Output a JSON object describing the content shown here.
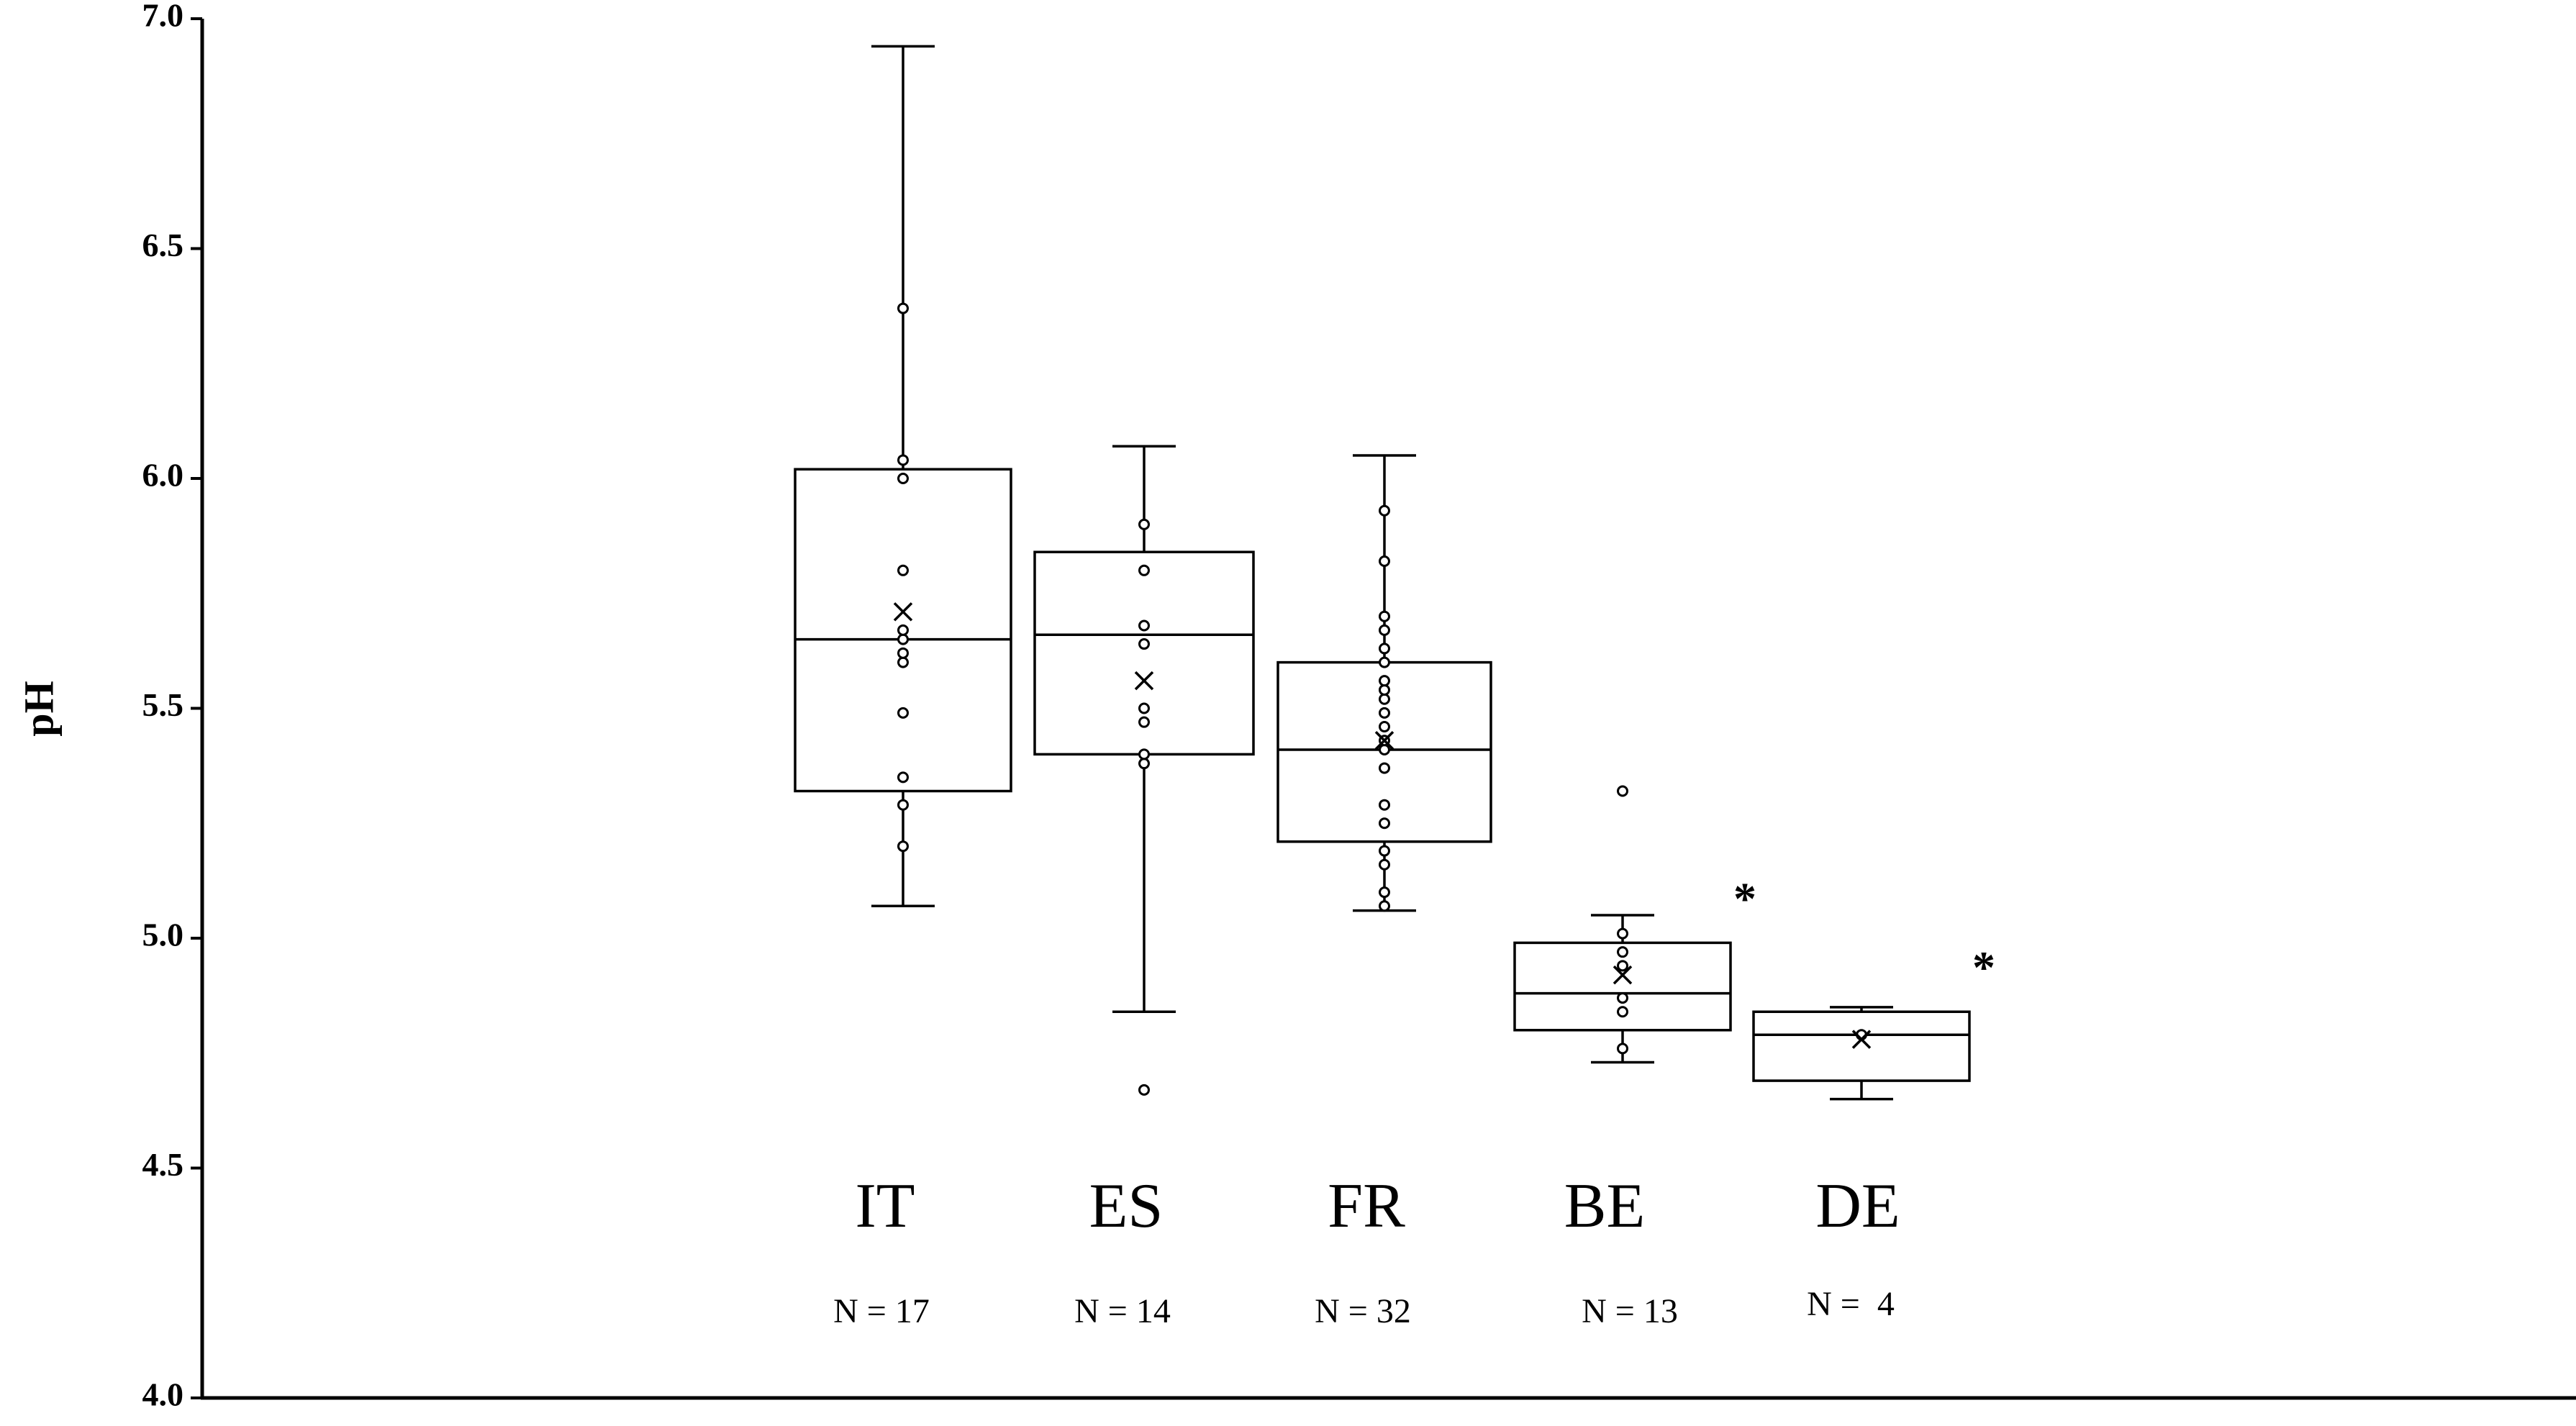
{
  "chart_data": {
    "type": "box",
    "title": "",
    "xlabel": "",
    "ylabel": "pH",
    "ylim": [
      4.0,
      7.0
    ],
    "yticks": [
      "4.0",
      "4.5",
      "5.0",
      "5.5",
      "6.0",
      "6.5",
      "7.0"
    ],
    "grid": false,
    "legend": "none",
    "categories": [
      {
        "name": "IT",
        "n_label": "N = 17",
        "significant": false,
        "whisker_low": 5.07,
        "q1": 5.32,
        "median": 5.65,
        "q3": 6.02,
        "whisker_high": 6.94,
        "mean": 5.71,
        "points": [
          5.2,
          5.29,
          5.35,
          5.49,
          5.6,
          5.62,
          5.65,
          5.67,
          5.8,
          6.0,
          6.04,
          6.37
        ]
      },
      {
        "name": "ES",
        "n_label": "N = 14",
        "significant": false,
        "whisker_low": 4.84,
        "q1": 5.4,
        "median": 5.66,
        "q3": 5.84,
        "whisker_high": 6.07,
        "mean": 5.56,
        "points": [
          4.67,
          5.38,
          5.4,
          5.47,
          5.5,
          5.64,
          5.68,
          5.8,
          5.9
        ]
      },
      {
        "name": "FR",
        "n_label": "N = 32",
        "significant": false,
        "whisker_low": 5.06,
        "q1": 5.21,
        "median": 5.41,
        "q3": 5.6,
        "whisker_high": 6.05,
        "mean": 5.43,
        "points": [
          5.07,
          5.1,
          5.16,
          5.19,
          5.25,
          5.29,
          5.37,
          5.41,
          5.43,
          5.46,
          5.49,
          5.52,
          5.54,
          5.56,
          5.6,
          5.63,
          5.67,
          5.7,
          5.82,
          5.93
        ]
      },
      {
        "name": "BE",
        "n_label": "N = 13",
        "significant": true,
        "whisker_low": 4.73,
        "q1": 4.8,
        "median": 4.88,
        "q3": 4.99,
        "whisker_high": 5.05,
        "mean": 4.92,
        "points": [
          4.76,
          4.84,
          4.87,
          4.94,
          4.97,
          5.01,
          5.32
        ]
      },
      {
        "name": "DE",
        "n_label": "N =  4",
        "significant": true,
        "whisker_low": 4.65,
        "q1": 4.69,
        "median": 4.79,
        "q3": 4.84,
        "whisker_high": 4.85,
        "mean": 4.78,
        "points": [
          4.79
        ]
      }
    ],
    "significance_marker": "*"
  }
}
